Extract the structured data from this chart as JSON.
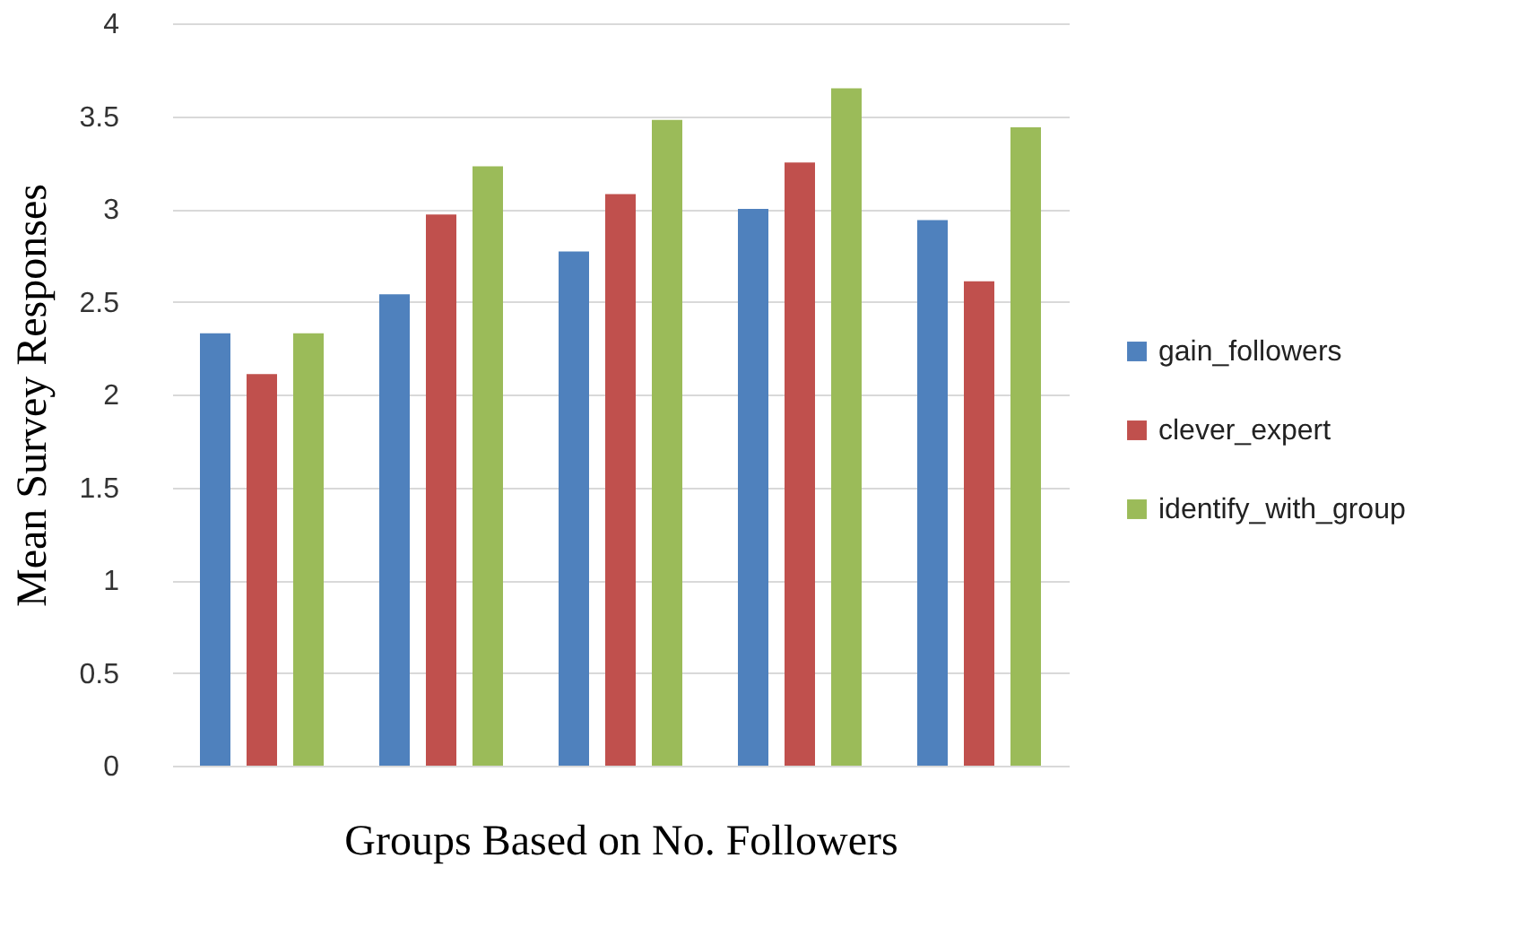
{
  "chart_data": {
    "type": "bar",
    "xlabel": "Groups Based on No. Followers",
    "ylabel": "Mean Survey Responses",
    "categories": [
      null,
      null,
      null,
      null,
      null
    ],
    "series": [
      {
        "name": "gain_followers",
        "color": "#4f81bd",
        "values": [
          2.33,
          2.54,
          2.77,
          3.0,
          2.94
        ]
      },
      {
        "name": "clever_expert",
        "color": "#c0504d",
        "values": [
          2.11,
          2.97,
          3.08,
          3.25,
          2.61
        ]
      },
      {
        "name": "identify_with_group",
        "color": "#9bbb59",
        "values": [
          2.33,
          3.23,
          3.48,
          3.65,
          3.44
        ]
      }
    ],
    "ylim": [
      0,
      4
    ],
    "yticks": [
      0,
      0.5,
      1,
      1.5,
      2,
      2.5,
      3,
      3.5,
      4
    ],
    "grid": "y",
    "legend": "right",
    "tick_labels": "y"
  }
}
